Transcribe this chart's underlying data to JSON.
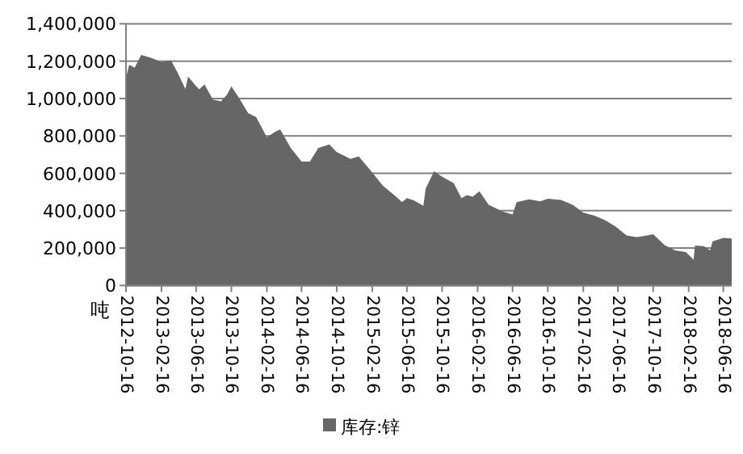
{
  "chart_data": {
    "type": "area",
    "ylabel": "吨",
    "grid": "y",
    "legend": "bottom",
    "xlim": [
      "2012-10-16",
      "2018-07-15"
    ],
    "ylim": [
      0,
      1400000
    ],
    "xticks": [
      "2012-10-16",
      "2013-02-16",
      "2013-06-16",
      "2013-10-16",
      "2014-02-16",
      "2014-06-16",
      "2014-10-16",
      "2015-02-16",
      "2015-06-16",
      "2015-10-16",
      "2016-02-16",
      "2016-06-16",
      "2016-10-16",
      "2017-02-16",
      "2017-06-16",
      "2017-10-16",
      "2018-02-16",
      "2018-06-16"
    ],
    "yticks": [
      0,
      {
        "value": 200000,
        "label": "200,000"
      },
      {
        "value": 400000,
        "label": "400,000"
      },
      {
        "value": 600000,
        "label": "600,000"
      },
      {
        "value": 800000,
        "label": "800,000"
      },
      {
        "value": 1000000,
        "label": "1,000,000"
      },
      {
        "value": 1200000,
        "label": "1,200,000"
      },
      {
        "value": 1400000,
        "label": "1,400,000"
      }
    ],
    "x": [
      "2012-10-16",
      "2012-10-27",
      "2012-11-15",
      "2012-12-08",
      "2013-01-10",
      "2013-02-16",
      "2013-03-21",
      "2013-04-13",
      "2013-05-10",
      "2013-05-19",
      "2013-06-16",
      "2013-06-27",
      "2013-07-15",
      "2013-08-13",
      "2013-09-10",
      "2013-10-01",
      "2013-10-16",
      "2013-11-15",
      "2013-12-13",
      "2014-01-10",
      "2014-02-16",
      "2014-03-15",
      "2014-04-03",
      "2014-05-10",
      "2014-06-16",
      "2014-07-15",
      "2014-08-13",
      "2014-09-20",
      "2014-10-16",
      "2014-12-03",
      "2014-12-31",
      "2015-02-16",
      "2015-03-25",
      "2015-05-10",
      "2015-05-30",
      "2015-06-16",
      "2015-07-10",
      "2015-08-12",
      "2015-08-20",
      "2015-09-18",
      "2015-10-16",
      "2015-11-25",
      "2015-12-22",
      "2016-01-10",
      "2016-01-30",
      "2016-02-22",
      "2016-03-25",
      "2016-05-10",
      "2016-06-16",
      "2016-06-30",
      "2016-08-12",
      "2016-09-20",
      "2016-10-16",
      "2016-12-01",
      "2017-01-10",
      "2017-02-16",
      "2017-03-25",
      "2017-05-01",
      "2017-06-06",
      "2017-07-16",
      "2017-08-20",
      "2017-09-25",
      "2017-10-16",
      "2017-11-25",
      "2018-01-01",
      "2018-02-06",
      "2018-03-05",
      "2018-03-10",
      "2018-04-10",
      "2018-05-01",
      "2018-05-10",
      "2018-06-16",
      "2018-07-15"
    ],
    "series": [
      {
        "name": "库存:锌",
        "color": "#666666",
        "values": [
          1110000,
          1180000,
          1165000,
          1233000,
          1218000,
          1195000,
          1204000,
          1138000,
          1051000,
          1118000,
          1066000,
          1050000,
          1075000,
          994000,
          985000,
          1020000,
          1066000,
          994000,
          922000,
          900000,
          792000,
          821000,
          835000,
          735000,
          663000,
          663000,
          735000,
          755000,
          714000,
          677000,
          691000,
          605000,
          533000,
          475000,
          446000,
          467000,
          455000,
          426000,
          518000,
          611000,
          582000,
          547000,
          467000,
          484000,
          475000,
          504000,
          432000,
          397000,
          380000,
          446000,
          461000,
          450000,
          464000,
          458000,
          432000,
          389000,
          374000,
          351000,
          317000,
          268000,
          259000,
          268000,
          274000,
          216000,
          187000,
          179000,
          138000,
          213000,
          210000,
          187000,
          236000,
          254000,
          251000
        ]
      }
    ]
  }
}
